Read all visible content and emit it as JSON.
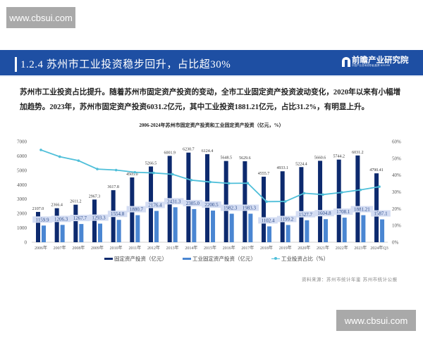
{
  "watermarks": {
    "top": "www.cbsui.com",
    "bottom": "www.cbsui.com"
  },
  "header": {
    "title": "1.2.4 苏州市工业投资稳步回升，占比超30%",
    "logo_name": "前瞻产业研究院",
    "logo_sub": "中国产业咨询领导者|股票 835599"
  },
  "paragraph": "苏州市工业投资占比提升。随着苏州市固定资产投资的变动，全市工业固定资产投资波动变化，2020年以来有小幅增加趋势。2023年，苏州市固定资产投资6031.2亿元，其中工业投资1881.21亿元，占比31.2%，有明显上升。",
  "source": "资料来源：苏州市统计年鉴 苏州市统计公报",
  "colors": {
    "fixed": "#0d2a6e",
    "industrial": "#4a86d2",
    "ratio": "#4fbfd9",
    "label_bg": "#d4ddf3",
    "header": "#1e4fa3"
  },
  "chart_data": {
    "type": "bar",
    "title": "2006-2024年苏州市固定资产投资和工业固定资产投资（亿元，%）",
    "xlabel": "",
    "ylabel": "",
    "ylim": [
      0,
      7000
    ],
    "y2lim": [
      0,
      60
    ],
    "yticks": [
      "0",
      "1000",
      "2000",
      "3000",
      "4000",
      "5000",
      "6000",
      "7000"
    ],
    "y2ticks": [
      "0%",
      "10%",
      "20%",
      "30%",
      "40%",
      "50%",
      "60%"
    ],
    "grid": false,
    "legend_position": "bottom",
    "categories": [
      "2006年",
      "2007年",
      "2008年",
      "2009年",
      "2010年",
      "2011年",
      "2012年",
      "2013年",
      "2014年",
      "2015年",
      "2016年",
      "2017年",
      "2018年",
      "2019年",
      "2020年",
      "2021年",
      "2022年",
      "2023年",
      "2024年Q3"
    ],
    "series": [
      {
        "name": "固定资产投资（亿元）",
        "type": "bar",
        "axis": "left",
        "values": [
          2107.0,
          2366.4,
          2611.2,
          2967.3,
          3617.8,
          4505.0,
          5266.5,
          6001.9,
          6230.7,
          6124.4,
          5648.5,
          5629.6,
          4555.7,
          4933.1,
          5224.4,
          5660.6,
          5744.2,
          6031.2,
          4790.41
        ],
        "labels": [
          "2107.0",
          "2366.4",
          "2611.2",
          "2967.3",
          "3617.8",
          "4505.0",
          "5266.5",
          "6001.9",
          "6230.7",
          "6124.4",
          "5648.5",
          "5629.6",
          "4555.7",
          "4933.1",
          "5224.4",
          "5660.6",
          "5744.2",
          "6031.2",
          "4790.41"
        ]
      },
      {
        "name": "工业固定资产投资（亿元）",
        "type": "bar",
        "axis": "left",
        "values": [
          1159.9,
          1206.3,
          1267.7,
          1293.3,
          1554.8,
          1880.7,
          2176.4,
          2431.3,
          2305.0,
          2200.5,
          1982.3,
          1983.3,
          1102.4,
          1199.2,
          1527.7,
          1604.8,
          1708.1,
          1881.21,
          1587.1
        ],
        "labels": [
          "1159.9",
          "1206.3",
          "1267.7",
          "1293.3",
          "1554.8",
          "1880.7",
          "2176.4",
          "2431.3",
          "2305.0",
          "2200.5",
          "1982.3",
          "1983.3",
          "1102.4",
          "1199.2",
          "1527.7",
          "1604.8",
          "1708.1",
          "1881.21",
          "1587.1"
        ]
      },
      {
        "name": "工业投资占比（%）",
        "type": "line",
        "axis": "right",
        "values": [
          55.0,
          51.0,
          48.6,
          43.6,
          43.0,
          41.7,
          41.3,
          40.5,
          37.0,
          35.9,
          35.1,
          35.2,
          24.2,
          24.3,
          29.2,
          28.4,
          29.7,
          31.2,
          33.1
        ]
      }
    ]
  }
}
